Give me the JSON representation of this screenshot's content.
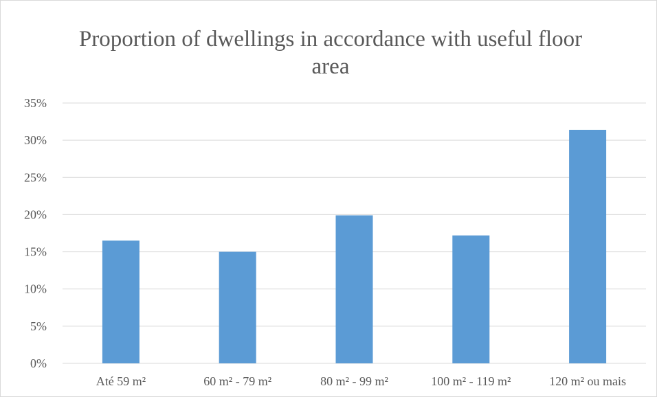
{
  "chart_data": {
    "type": "bar",
    "title": "Proportion of dwellings in accordance with useful floor area",
    "categories": [
      "Até 59  m²",
      "60 m² - 79 m²",
      "80 m² - 99 m²",
      "100 m² - 119 m²",
      "120 m² ou mais"
    ],
    "values": [
      0.165,
      0.15,
      0.199,
      0.172,
      0.314
    ],
    "ylim": [
      0,
      0.35
    ],
    "yticks": [
      0,
      0.05,
      0.1,
      0.15,
      0.2,
      0.25,
      0.3,
      0.35
    ],
    "ytick_labels": [
      "0%",
      "5%",
      "10%",
      "15%",
      "20%",
      "25%",
      "30%",
      "35%"
    ],
    "xlabel": "",
    "ylabel": "",
    "grid": "horizontal",
    "legend": "none",
    "bar_color": "#5b9bd5",
    "grid_color": "#d9d9d9",
    "text_color": "#595959"
  }
}
